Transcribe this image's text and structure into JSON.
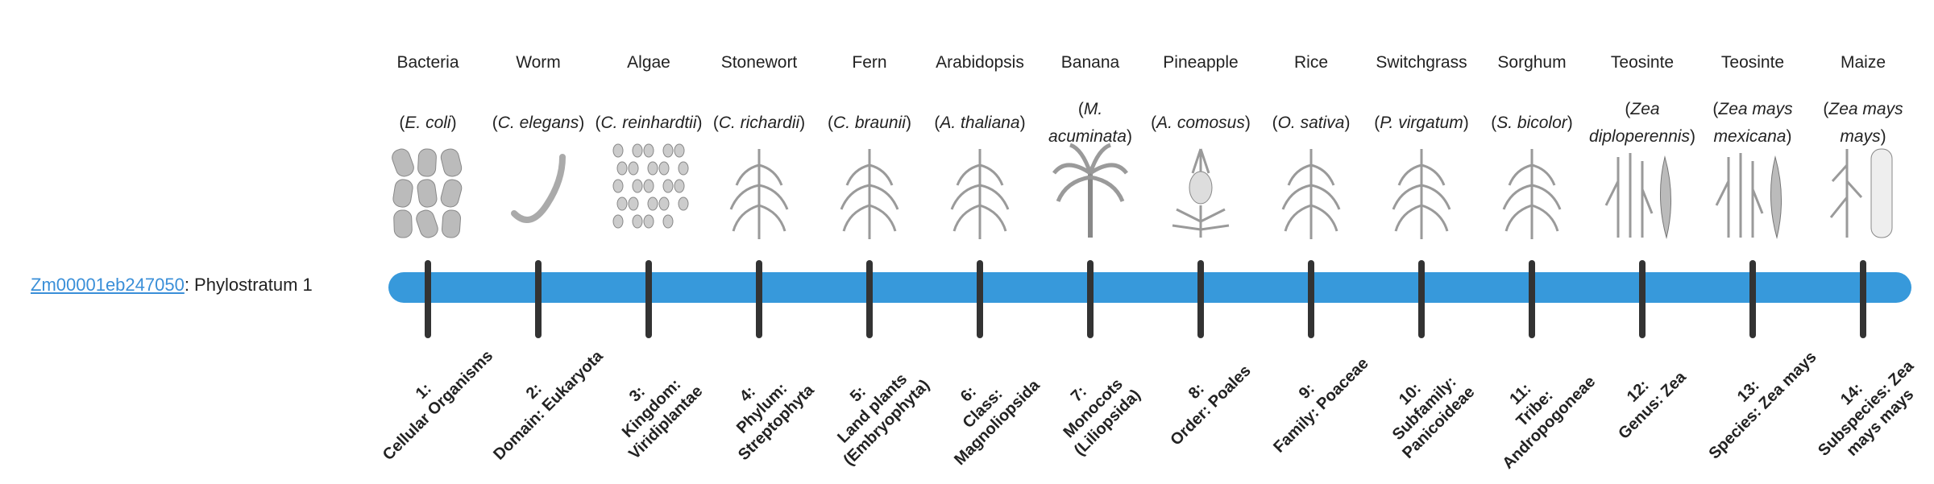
{
  "gene": {
    "id": "Zm00001eb247050",
    "suffix": ": Phylostratum 1"
  },
  "bar_color": "#3799db",
  "organisms": [
    {
      "name": "Bacteria",
      "species": "E. coli",
      "icon": "bacteria-icon"
    },
    {
      "name": "Worm",
      "species": "C. elegans",
      "icon": "worm-icon"
    },
    {
      "name": "Algae",
      "species": "C. reinhardtii",
      "icon": "algae-icon"
    },
    {
      "name": "Stonewort",
      "species": "C. richardii",
      "icon": "stonewort-icon"
    },
    {
      "name": "Fern",
      "species": "C. braunii",
      "icon": "fern-icon"
    },
    {
      "name": "Arabidopsis",
      "species": "A. thaliana",
      "icon": "arabidopsis-icon"
    },
    {
      "name": "Banana",
      "species": "M. acuminata",
      "icon": "banana-icon"
    },
    {
      "name": "Pineapple",
      "species": "A. comosus",
      "icon": "pineapple-icon"
    },
    {
      "name": "Rice",
      "species": "O. sativa",
      "icon": "rice-icon"
    },
    {
      "name": "Switchgrass",
      "species": "P. virgatum",
      "icon": "switchgrass-icon"
    },
    {
      "name": "Sorghum",
      "species": "S. bicolor",
      "icon": "sorghum-icon"
    },
    {
      "name": "Teosinte",
      "species": "Zea diploperennis",
      "icon": "teosinte-icon"
    },
    {
      "name": "Teosinte",
      "species": "Zea mays mexicana",
      "icon": "teosinte-icon"
    },
    {
      "name": "Maize",
      "species": "Zea mays mays",
      "icon": "maize-icon"
    }
  ],
  "strata": [
    {
      "num": "1:",
      "label": "Cellular Organisms"
    },
    {
      "num": "2:",
      "label": "Domain: Eukaryota"
    },
    {
      "num": "3:",
      "label": "Kingdom: Viridiplantae"
    },
    {
      "num": "4:",
      "label": "Phylum: Streptophyta"
    },
    {
      "num": "5:",
      "label": "Land plants (Embryophyta)"
    },
    {
      "num": "6:",
      "label": "Class: Magnoliopsida"
    },
    {
      "num": "7:",
      "label": "Monocots (Liliopsida)"
    },
    {
      "num": "8:",
      "label": "Order: Poales"
    },
    {
      "num": "9:",
      "label": "Family: Poaceae"
    },
    {
      "num": "10:",
      "label": "Subfamily: Panicoideae"
    },
    {
      "num": "11:",
      "label": "Tribe: Andropogoneae"
    },
    {
      "num": "12:",
      "label": "Genus: Zea"
    },
    {
      "num": "13:",
      "label": "Species: Zea mays"
    },
    {
      "num": "14:",
      "label": "Subspecies: Zea mays mays"
    }
  ]
}
